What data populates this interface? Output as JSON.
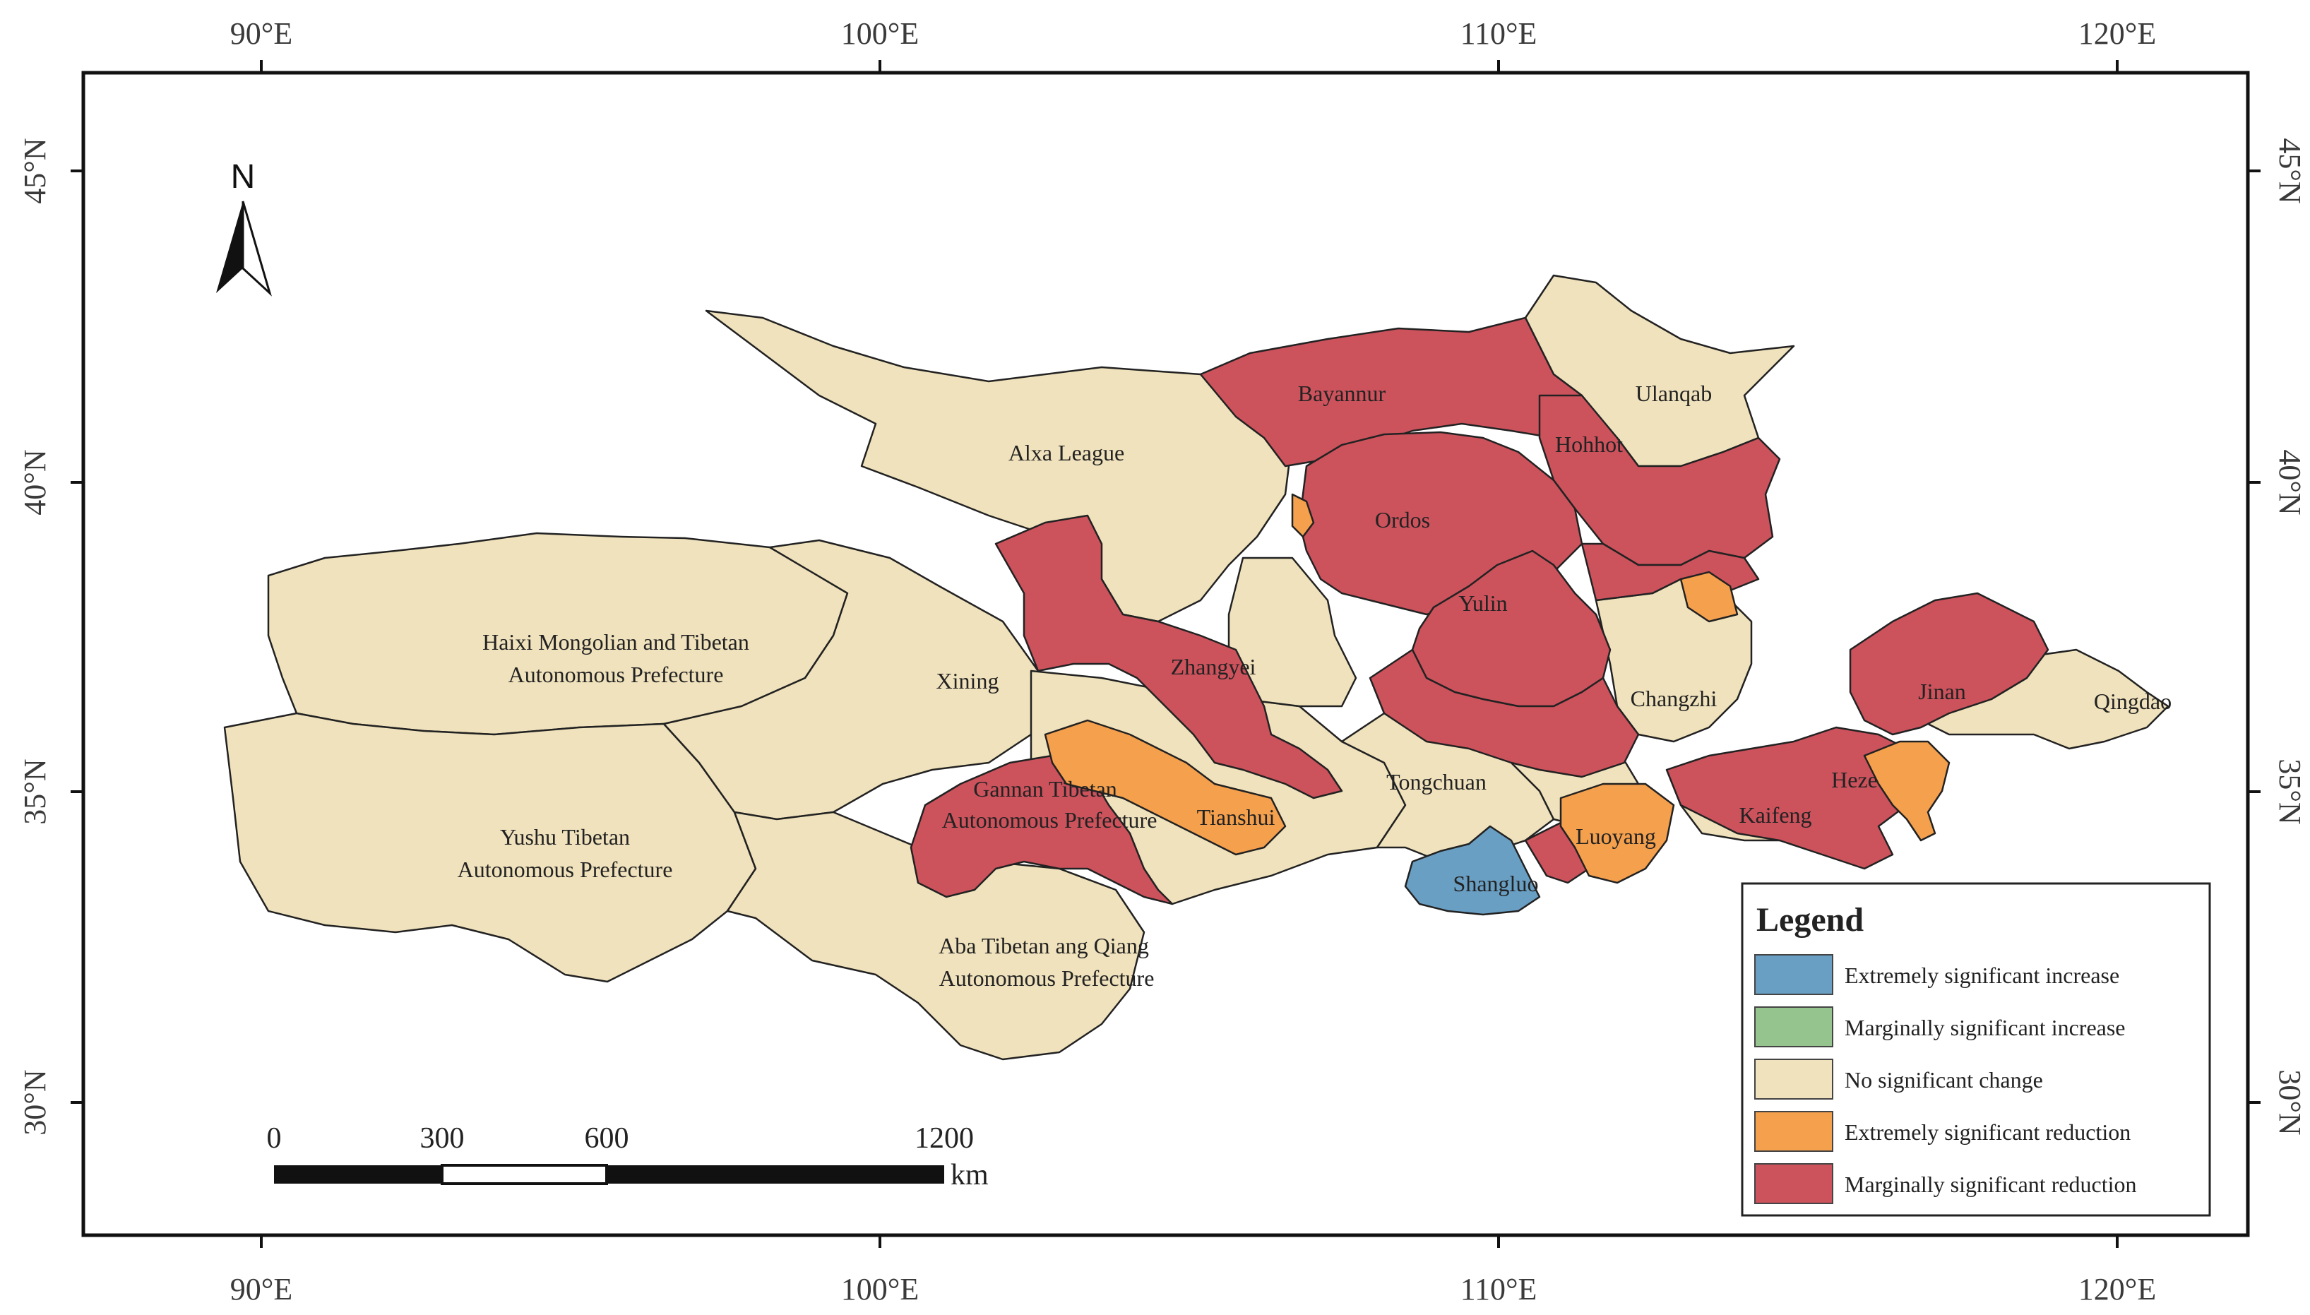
{
  "axes": {
    "top_labels": [
      "90°E",
      "100°E",
      "110°E",
      "120°E"
    ],
    "bottom_labels": [
      "90°E",
      "100°E",
      "110°E",
      "120°E"
    ],
    "left_labels": [
      "45°N",
      "40°N",
      "35°N",
      "30°N"
    ],
    "right_labels": [
      "45°N",
      "40°N",
      "35°N",
      "30°N"
    ]
  },
  "north_arrow": {
    "label": "N"
  },
  "scale_bar": {
    "ticks": [
      "0",
      "300",
      "600",
      "1200"
    ],
    "unit": "km"
  },
  "colors": {
    "extremely_significant_increase": "#6a9fc4",
    "marginally_significant_increase": "#95c48f",
    "no_significant_change": "#f0e2bc",
    "extremely_significant_reduction": "#f5a04d",
    "marginally_significant_reduction": "#cc525c"
  },
  "places": [
    "Bayannur",
    "Ulanqab",
    "Hohhot",
    "Alxa League",
    "Ordos",
    "Yulin",
    "Haixi Mongolian and Tibetan",
    "Autonomous Prefecture",
    "Xining",
    "Zhangyei",
    "Changzhi",
    "Jinan",
    "Qingdao",
    "Gannan Tibetan",
    "Autonomous Prefecture",
    "Tianshui",
    "Tongchuan",
    "Heze",
    "Kaifeng",
    "Luoyang",
    "Shangluo",
    "Yushu Tibetan",
    "Autonomous Prefecture",
    "Aba Tibetan ang Qiang",
    "Autonomous Prefecture"
  ],
  "legend": {
    "title": "Legend",
    "items": [
      {
        "label": "Extremely significant increase",
        "color": "#6a9fc4"
      },
      {
        "label": "Marginally significant increase",
        "color": "#95c48f"
      },
      {
        "label": "No significant change",
        "color": "#f0e2bc"
      },
      {
        "label": "Extremely significant reduction",
        "color": "#f5a04d"
      },
      {
        "label": "Marginally significant reduction",
        "color": "#cc525c"
      }
    ]
  }
}
